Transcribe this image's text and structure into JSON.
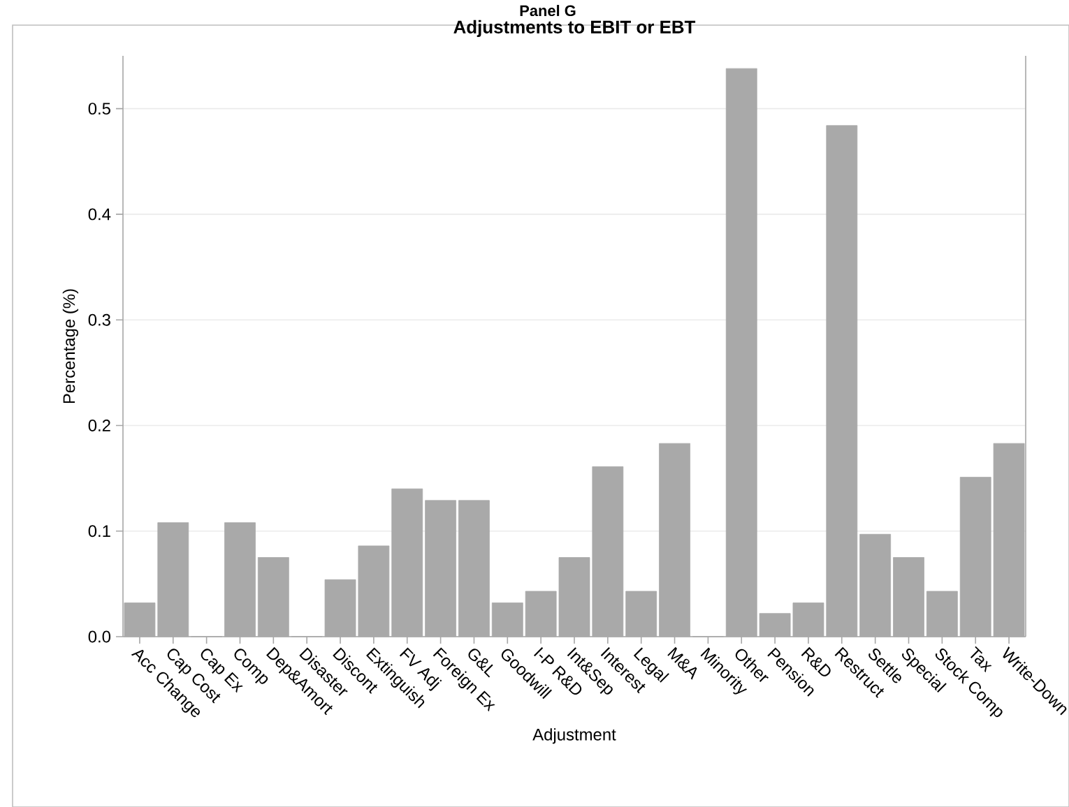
{
  "chart_data": {
    "type": "bar",
    "title": "Adjustments to EBIT or EBT",
    "xlabel": "Adjustment",
    "ylabel": "Percentage (%)",
    "annotations": [
      "Panel G"
    ],
    "categories": [
      "Acc Change",
      "Cap Cost",
      "Cap Ex",
      "Comp",
      "Dep&Amort",
      "Disaster",
      "Discont",
      "Extinguish",
      "FV Adj",
      "Foreign Ex",
      "G&L",
      "Goodwill",
      "I-P R&D",
      "Int&Sep",
      "Interest",
      "Legal",
      "M&A",
      "Minority",
      "Other",
      "Pension",
      "R&D",
      "Restruct",
      "Settle",
      "Special",
      "Stock Comp",
      "Tax",
      "Write-Down"
    ],
    "values": [
      0.032,
      0.108,
      0,
      0.108,
      0.075,
      0,
      0.054,
      0.086,
      0.14,
      0.129,
      0.129,
      0.032,
      0.043,
      0.075,
      0.161,
      0.043,
      0.183,
      0,
      0.538,
      0.022,
      0.032,
      0.484,
      0.097,
      0.075,
      0.043,
      0.151,
      0.183
    ],
    "color": "#a9a9a9",
    "ylim": [
      0,
      0.55
    ],
    "yticks": [
      {
        "value": 0,
        "label": "0.0"
      },
      {
        "value": 0.1,
        "label": "0.1"
      },
      {
        "value": 0.2,
        "label": "0.2"
      },
      {
        "value": 0.3,
        "label": "0.3"
      },
      {
        "value": 0.4,
        "label": "0.4"
      },
      {
        "value": 0.5,
        "label": "0.5"
      }
    ],
    "grid": "y"
  }
}
